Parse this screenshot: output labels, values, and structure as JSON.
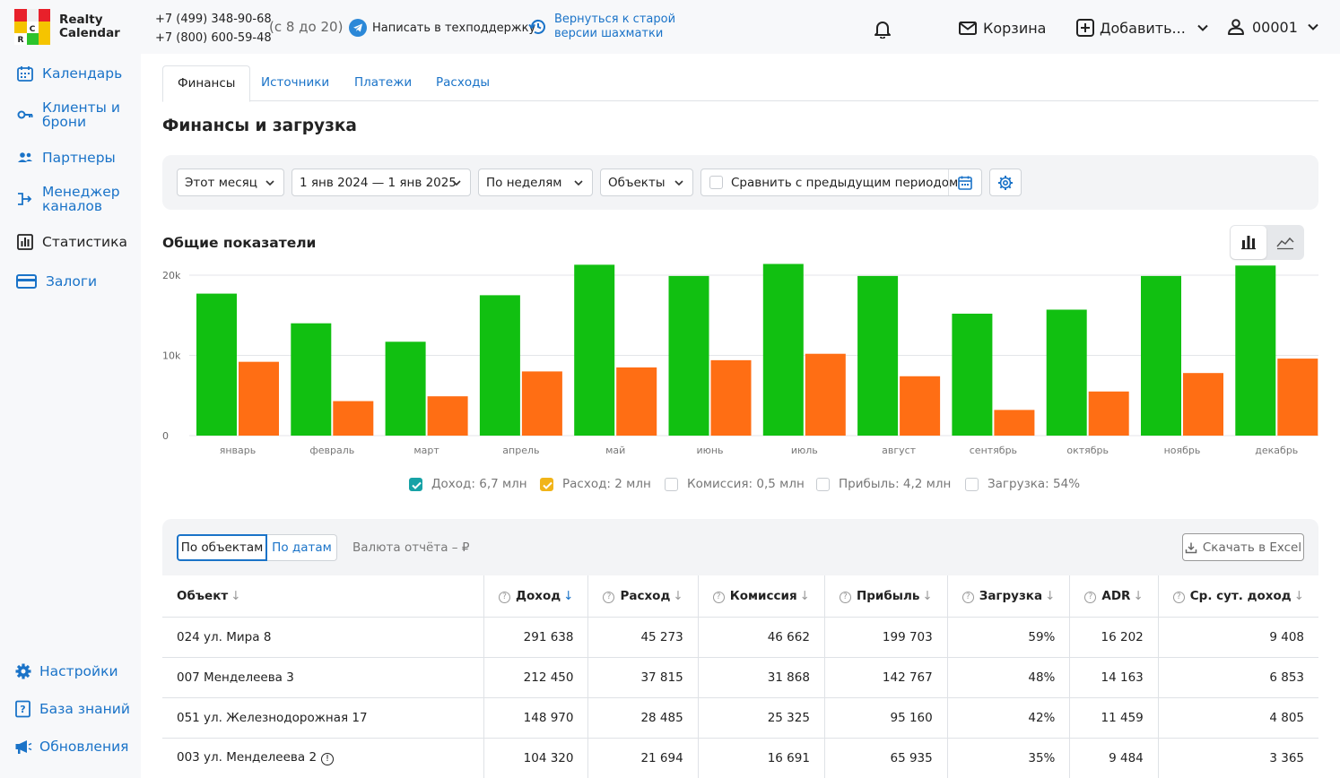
{
  "app": {
    "name_line1": "Realty",
    "name_line2": "Calendar"
  },
  "header": {
    "phone1": "+7 (499) 348-90-68",
    "phone2": "+7 (800) 600-59-48",
    "hours": "(с 8 до 20)",
    "support": "Написать в техподдержку",
    "old_version_line1": "Вернуться к старой",
    "old_version_line2": "версии шахматки",
    "cart": "Корзина",
    "add": "Добавить...",
    "user": "00001"
  },
  "sidebar": {
    "items": [
      {
        "label": "Календарь",
        "icon": "calendar-icon"
      },
      {
        "label_line1": "Клиенты и",
        "label_line2": "брони",
        "icon": "key-icon"
      },
      {
        "label": "Партнеры",
        "icon": "users-icon"
      },
      {
        "label_line1": "Менеджер",
        "label_line2": "каналов",
        "icon": "channels-icon"
      },
      {
        "label": "Статистика",
        "icon": "bar-chart-icon"
      },
      {
        "label": "Залоги",
        "icon": "card-icon"
      }
    ],
    "bottom": [
      {
        "label": "Настройки",
        "icon": "gear-icon"
      },
      {
        "label": "База знаний",
        "icon": "help-icon"
      },
      {
        "label": "Обновления",
        "icon": "megaphone-icon"
      }
    ]
  },
  "tabs": [
    "Финансы",
    "Источники",
    "Платежи",
    "Расходы"
  ],
  "page_title": "Финансы и загрузка",
  "filters": {
    "period": "Этот месяц",
    "range": "1 янв 2024 — 1 янв 2025",
    "grouping": "По неделям",
    "objects": "Объекты",
    "compare": "Сравнить с предыдущим периодом"
  },
  "section_title": "Общие показатели",
  "chart_data": {
    "type": "bar",
    "categories": [
      "январь",
      "февраль",
      "март",
      "апрель",
      "май",
      "июнь",
      "июль",
      "август",
      "сентябрь",
      "октябрь",
      "ноябрь",
      "декабрь"
    ],
    "series": [
      {
        "name": "Доход",
        "color": "#11c011",
        "values": [
          17700,
          14000,
          11700,
          17500,
          21300,
          19900,
          21400,
          19900,
          15200,
          15700,
          19900,
          21200
        ]
      },
      {
        "name": "Расход",
        "color": "#ff6e14",
        "values": [
          9200,
          4300,
          4900,
          8000,
          8500,
          9400,
          10200,
          7400,
          3200,
          5500,
          7800,
          9600
        ]
      }
    ],
    "yticks": [
      "0",
      "10k",
      "20k"
    ],
    "ylim": [
      0,
      22000
    ],
    "grid": true
  },
  "legend": [
    {
      "label": "Доход: 6,7 млн",
      "checked": true,
      "color": "#17a2a6"
    },
    {
      "label": "Расход: 2 млн",
      "checked": true,
      "color": "#f1b419"
    },
    {
      "label": "Комиссия: 0,5 млн",
      "checked": false
    },
    {
      "label": "Прибыль: 4,2 млн",
      "checked": false
    },
    {
      "label": "Загрузка: 54%",
      "checked": false
    }
  ],
  "table_controls": {
    "by_objects": "По объектам",
    "by_dates": "По датам",
    "currency": "Валюта отчёта – ₽",
    "excel": "Скачать в Excel"
  },
  "table": {
    "headers": [
      "Объект",
      "Доход",
      "Расход",
      "Комиссия",
      "Прибыль",
      "Загрузка",
      "ADR",
      "Ср. сут. доход"
    ],
    "rows": [
      [
        "024 ул. Мира 8",
        "291 638",
        "45 273",
        "46 662",
        "199 703",
        "59%",
        "16 202",
        "9 408"
      ],
      [
        "007 Менделеева 3",
        "212 450",
        "37 815",
        "31 868",
        "142 767",
        "48%",
        "14 163",
        "6 853"
      ],
      [
        "051 ул. Железнодорожная 17",
        "148 970",
        "28 485",
        "25 325",
        "95 160",
        "42%",
        "11 459",
        "4 805"
      ],
      [
        "003 ул. Менделеева 2",
        "104 320",
        "21 694",
        "16 691",
        "65 935",
        "35%",
        "9 484",
        "3 365"
      ]
    ]
  }
}
